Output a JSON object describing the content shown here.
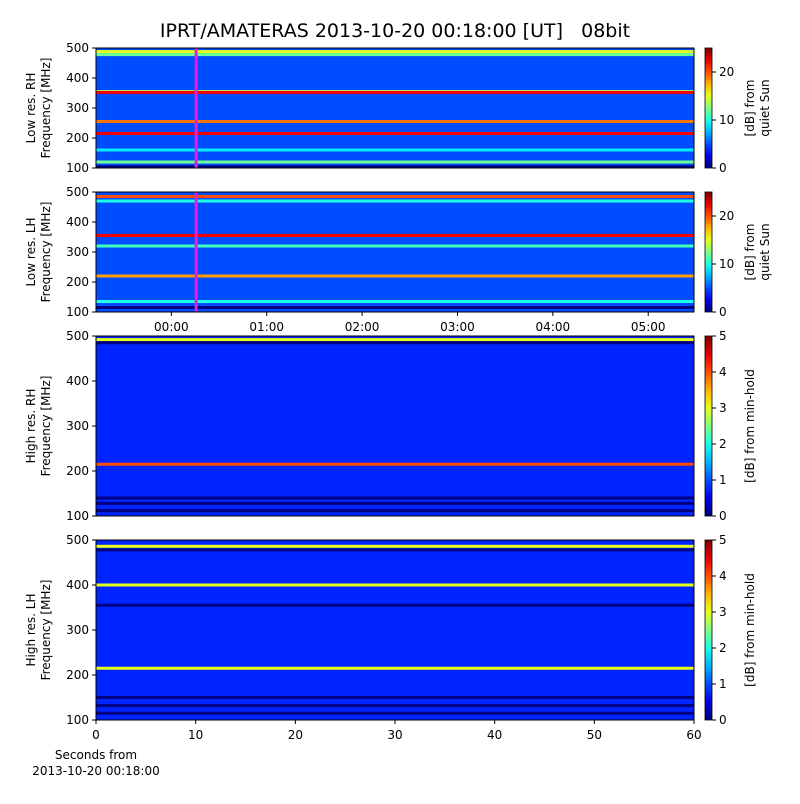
{
  "chart_data": [
    {
      "type": "heatmap",
      "title": "IPRT/AMATERAS 2013-10-20 00:18:00 [UT]   08bit",
      "ylabel": [
        "Low res. RH",
        "Frequency [MHz]"
      ],
      "colorbar_label": [
        "[dB] from",
        "quiet Sun"
      ],
      "xlim": [
        -0.79,
        5.48
      ],
      "ylim": [
        100,
        500
      ],
      "yticks": [
        100,
        200,
        300,
        400,
        500
      ],
      "clim": [
        0,
        25
      ],
      "cticks": [
        0,
        10,
        20
      ],
      "background": 5,
      "marker": {
        "x": 0.26,
        "color": "#e020e0"
      },
      "bands": [
        {
          "y": 488,
          "value": 15
        },
        {
          "y": 478,
          "value": 12
        },
        {
          "y": 355,
          "value": 13
        },
        {
          "y": 352,
          "value": 22
        },
        {
          "y": 255,
          "value": 19
        },
        {
          "y": 215,
          "value": 22
        },
        {
          "y": 160,
          "value": 9
        },
        {
          "y": 120,
          "value": 12
        },
        {
          "y": 104,
          "value": 0
        }
      ]
    },
    {
      "type": "heatmap",
      "ylabel": [
        "Low res. LH",
        "Frequency [MHz]"
      ],
      "colorbar_label": [
        "[dB] from",
        "quiet Sun"
      ],
      "xlim": [
        -0.79,
        5.48
      ],
      "xticks": [
        {
          "value": 0,
          "label": "00:00"
        },
        {
          "value": 1,
          "label": "01:00"
        },
        {
          "value": 2,
          "label": "02:00"
        },
        {
          "value": 3,
          "label": "03:00"
        },
        {
          "value": 4,
          "label": "04:00"
        },
        {
          "value": 5,
          "label": "05:00"
        }
      ],
      "ylim": [
        100,
        500
      ],
      "yticks": [
        100,
        200,
        300,
        400,
        500
      ],
      "clim": [
        0,
        25
      ],
      "cticks": [
        0,
        10,
        20
      ],
      "background": 5,
      "marker": {
        "x": 0.26,
        "color": "#e020e0"
      },
      "bands": [
        {
          "y": 485,
          "value": 20
        },
        {
          "y": 470,
          "value": 10
        },
        {
          "y": 355,
          "value": 22
        },
        {
          "y": 320,
          "value": 11
        },
        {
          "y": 220,
          "value": 18
        },
        {
          "y": 135,
          "value": 10
        },
        {
          "y": 115,
          "value": 0
        }
      ]
    },
    {
      "type": "heatmap",
      "ylabel": [
        "High res. RH",
        "Frequency [MHz]"
      ],
      "colorbar_label": [
        "[dB] from min-hold"
      ],
      "xlim": [
        0,
        60
      ],
      "ylim": [
        100,
        500
      ],
      "yticks": [
        100,
        200,
        300,
        400,
        500
      ],
      "clim": [
        0,
        5
      ],
      "cticks": [
        0,
        1,
        2,
        3,
        4,
        5
      ],
      "background": 0.8,
      "bands": [
        {
          "y": 492,
          "value": 3
        },
        {
          "y": 485,
          "value": 0
        },
        {
          "y": 215,
          "value": 4
        },
        {
          "y": 140,
          "value": 0
        },
        {
          "y": 128,
          "value": 0
        },
        {
          "y": 112,
          "value": 0
        }
      ]
    },
    {
      "type": "heatmap",
      "ylabel": [
        "High res. LH",
        "Frequency [MHz]"
      ],
      "colorbar_label": [
        "[dB] from min-hold"
      ],
      "xlabel": [
        "Seconds from",
        "2013-10-20 00:18:00"
      ],
      "xlim": [
        0,
        60
      ],
      "xticks": [
        0,
        10,
        20,
        30,
        40,
        50,
        60
      ],
      "ylim": [
        100,
        500
      ],
      "yticks": [
        100,
        200,
        300,
        400,
        500
      ],
      "clim": [
        0,
        5
      ],
      "cticks": [
        0,
        1,
        2,
        3,
        4,
        5
      ],
      "background": 0.8,
      "bands": [
        {
          "y": 486,
          "value": 3
        },
        {
          "y": 478,
          "value": 0
        },
        {
          "y": 400,
          "value": 3
        },
        {
          "y": 355,
          "value": 0
        },
        {
          "y": 215,
          "value": 3
        },
        {
          "y": 150,
          "value": 0
        },
        {
          "y": 132,
          "value": 0
        },
        {
          "y": 115,
          "value": 0
        }
      ]
    }
  ]
}
